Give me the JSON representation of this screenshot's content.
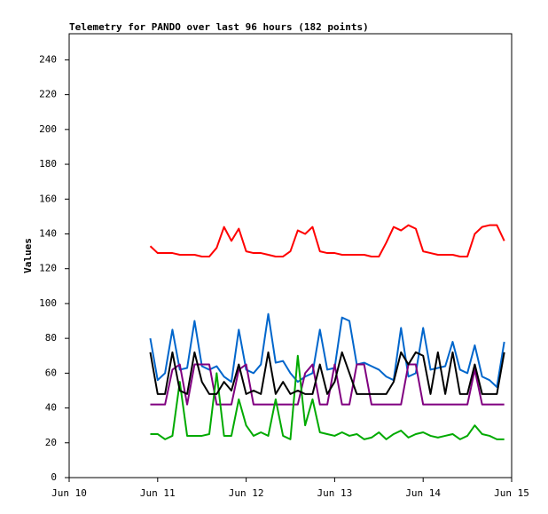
{
  "chart_data": {
    "type": "line",
    "title": "Telemetry for PANDO over last 96 hours (182 points)",
    "ylabel": "Values",
    "xlim": [
      0,
      120
    ],
    "xticks": [
      {
        "value": 0,
        "label": "Jun 10"
      },
      {
        "value": 24,
        "label": "Jun 11"
      },
      {
        "value": 48,
        "label": "Jun 12"
      },
      {
        "value": 72,
        "label": "Jun 13"
      },
      {
        "value": 96,
        "label": "Jun 14"
      },
      {
        "value": 120,
        "label": "Jun 15"
      }
    ],
    "ylim": [
      0,
      255
    ],
    "yticks": [
      0,
      20,
      40,
      60,
      80,
      100,
      120,
      140,
      160,
      180,
      200,
      220,
      240
    ],
    "grid": false,
    "x": [
      22,
      24,
      26,
      28,
      30,
      32,
      34,
      36,
      38,
      40,
      42,
      44,
      46,
      48,
      50,
      52,
      54,
      56,
      58,
      60,
      62,
      64,
      66,
      68,
      70,
      72,
      74,
      76,
      78,
      80,
      82,
      84,
      86,
      88,
      90,
      92,
      94,
      96,
      98,
      100,
      102,
      104,
      106,
      108,
      110,
      112,
      114,
      116,
      118
    ],
    "series": [
      {
        "color": "#ff0000",
        "values": [
          133,
          129,
          129,
          129,
          128,
          128,
          128,
          127,
          127,
          132,
          144,
          136,
          143,
          130,
          129,
          129,
          128,
          127,
          127,
          130,
          142,
          140,
          144,
          130,
          129,
          129,
          128,
          128,
          128,
          128,
          127,
          127,
          135,
          144,
          142,
          145,
          143,
          130,
          129,
          128,
          128,
          128,
          127,
          127,
          140,
          144,
          145,
          145,
          136
        ]
      },
      {
        "color": "#0066cc",
        "values": [
          80,
          56,
          60,
          85,
          62,
          63,
          90,
          64,
          62,
          64,
          58,
          55,
          85,
          62,
          60,
          65,
          94,
          66,
          67,
          60,
          55,
          58,
          60,
          85,
          62,
          63,
          92,
          90,
          65,
          66,
          64,
          62,
          58,
          56,
          86,
          58,
          60,
          86,
          62,
          63,
          64,
          78,
          62,
          60,
          76,
          58,
          56,
          52,
          78
        ]
      },
      {
        "color": "#800080",
        "values": [
          42,
          42,
          42,
          62,
          65,
          42,
          65,
          65,
          65,
          42,
          42,
          42,
          62,
          65,
          42,
          42,
          42,
          42,
          42,
          42,
          42,
          60,
          65,
          42,
          42,
          65,
          42,
          42,
          65,
          65,
          42,
          42,
          42,
          42,
          42,
          65,
          65,
          42,
          42,
          42,
          42,
          42,
          42,
          42,
          62,
          42,
          42,
          42,
          42
        ]
      },
      {
        "color": "#00aa00",
        "values": [
          25,
          25,
          22,
          24,
          55,
          24,
          24,
          24,
          25,
          60,
          24,
          24,
          45,
          30,
          24,
          26,
          24,
          45,
          24,
          22,
          70,
          30,
          45,
          26,
          25,
          24,
          26,
          24,
          25,
          22,
          23,
          26,
          22,
          25,
          27,
          23,
          25,
          26,
          24,
          23,
          24,
          25,
          22,
          24,
          30,
          25,
          24,
          22,
          22
        ]
      },
      {
        "color": "#000000",
        "values": [
          72,
          48,
          48,
          72,
          50,
          48,
          72,
          55,
          48,
          48,
          55,
          50,
          65,
          48,
          50,
          48,
          72,
          48,
          55,
          48,
          50,
          48,
          48,
          65,
          48,
          55,
          72,
          60,
          48,
          48,
          48,
          48,
          48,
          55,
          72,
          65,
          72,
          70,
          48,
          72,
          48,
          72,
          48,
          48,
          65,
          48,
          48,
          48,
          72
        ]
      }
    ]
  }
}
